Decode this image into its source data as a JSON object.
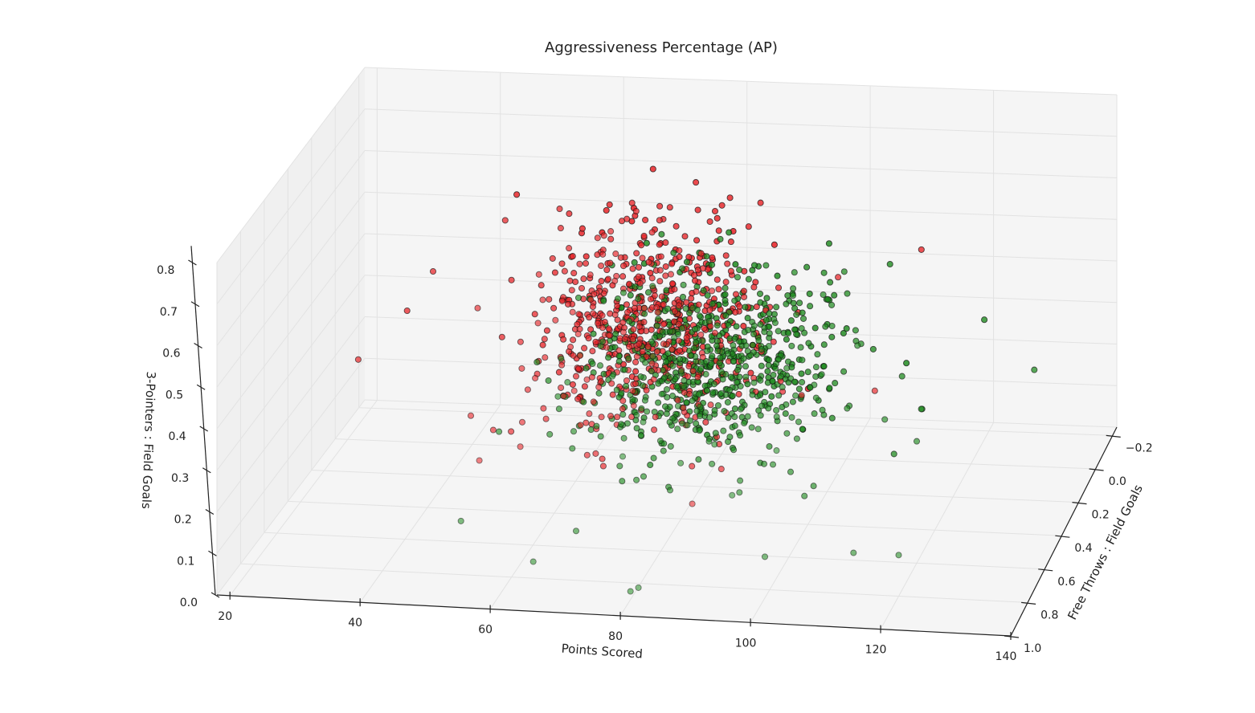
{
  "chart_data": {
    "type": "scatter",
    "projection": "3d",
    "title": "Aggressiveness Percentage (AP)",
    "xlabel": "Points Scored",
    "ylabel": "Free Throws : Field Goals",
    "zlabel": "3-Pointers : Field Goals",
    "xlim": [
      18,
      140
    ],
    "ylim": [
      -0.25,
      1.0
    ],
    "zlim": [
      0.0,
      0.8
    ],
    "x_ticks": [
      "20",
      "40",
      "60",
      "80",
      "100",
      "120",
      "140"
    ],
    "y_ticks": [
      "−0.2",
      "0.0",
      "0.2",
      "0.4",
      "0.6",
      "0.8",
      "1.0"
    ],
    "z_ticks": [
      "0.0",
      "0.1",
      "0.2",
      "0.3",
      "0.4",
      "0.5",
      "0.6",
      "0.7",
      "0.8"
    ],
    "grid": true,
    "colors": {
      "red": "#e8262a",
      "green": "#1e8a1e",
      "edge": "#111111",
      "pane": "#f5f5f5",
      "grid": "#e2e2e2"
    },
    "series": [
      {
        "color": "red",
        "center": [
          74,
          0.33,
          0.47
        ],
        "spread": [
          9,
          0.17,
          0.11
        ],
        "count": 620,
        "points": [
          [
            48,
            0.05,
            0.66
          ],
          [
            69,
            0.0,
            0.72
          ],
          [
            60,
            0.35,
            0.74
          ],
          [
            35,
            0.3,
            0.45
          ],
          [
            30,
            0.45,
            0.38
          ],
          [
            40,
            0.35,
            0.57
          ],
          [
            75,
            0.2,
            0.7
          ],
          [
            82,
            0.12,
            0.68
          ],
          [
            104,
            0.35,
            0.6
          ],
          [
            115,
            0.2,
            0.62
          ],
          [
            102,
            0.6,
            0.4
          ],
          [
            55,
            0.8,
            0.28
          ],
          [
            52,
            0.7,
            0.35
          ],
          [
            60,
            0.7,
            0.34
          ],
          [
            88,
            0.8,
            0.2
          ],
          [
            112,
            0.5,
            0.38
          ]
        ]
      },
      {
        "color": "green",
        "center": [
          86,
          0.42,
          0.4
        ],
        "spread": [
          10,
          0.17,
          0.1
        ],
        "count": 720,
        "points": [
          [
            125,
            0.2,
            0.45
          ],
          [
            135,
            0.35,
            0.39
          ],
          [
            120,
            0.6,
            0.3
          ],
          [
            118,
            0.4,
            0.3
          ],
          [
            120,
            0.8,
            0.1
          ],
          [
            113,
            0.8,
            0.1
          ],
          [
            100,
            0.85,
            0.1
          ],
          [
            80,
            0.9,
            0.02
          ],
          [
            82,
            0.95,
            0.05
          ],
          [
            70,
            0.8,
            0.12
          ],
          [
            65,
            0.9,
            0.08
          ],
          [
            53,
            0.85,
            0.15
          ],
          [
            120,
            0.55,
            0.36
          ],
          [
            110,
            0.2,
            0.58
          ],
          [
            115,
            0.6,
            0.35
          ],
          [
            108,
            0.5,
            0.34
          ]
        ]
      }
    ]
  }
}
